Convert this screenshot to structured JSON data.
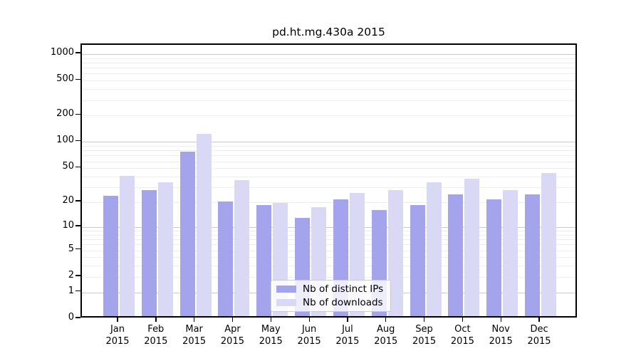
{
  "chart_data": {
    "type": "bar",
    "title": "pd.ht.mg.430a 2015",
    "categories": [
      "Jan",
      "Feb",
      "Mar",
      "Apr",
      "May",
      "Jun",
      "Jul",
      "Aug",
      "Sep",
      "Oct",
      "Nov",
      "Dec"
    ],
    "x_tick_year": "2015",
    "series": [
      {
        "name": "Nb of distinct IPs",
        "color": "#a4a4ec",
        "values": [
          22,
          26,
          72,
          19,
          17,
          12,
          20,
          15,
          17,
          23,
          20,
          23
        ]
      },
      {
        "name": "Nb of downloads",
        "color": "#d9d9f6",
        "values": [
          38,
          32,
          115,
          34,
          18,
          16,
          24,
          26,
          32,
          35,
          26,
          41
        ]
      }
    ],
    "y_axis": {
      "scale": "log1p",
      "tick_labels": [
        0,
        1,
        2,
        5,
        10,
        20,
        50,
        100,
        200,
        500,
        1000
      ],
      "range": [
        0,
        1000
      ]
    },
    "legend_position": "bottom-center",
    "grid": {
      "major_color": "#c9c9c9",
      "minor_color": "#ededed"
    }
  }
}
